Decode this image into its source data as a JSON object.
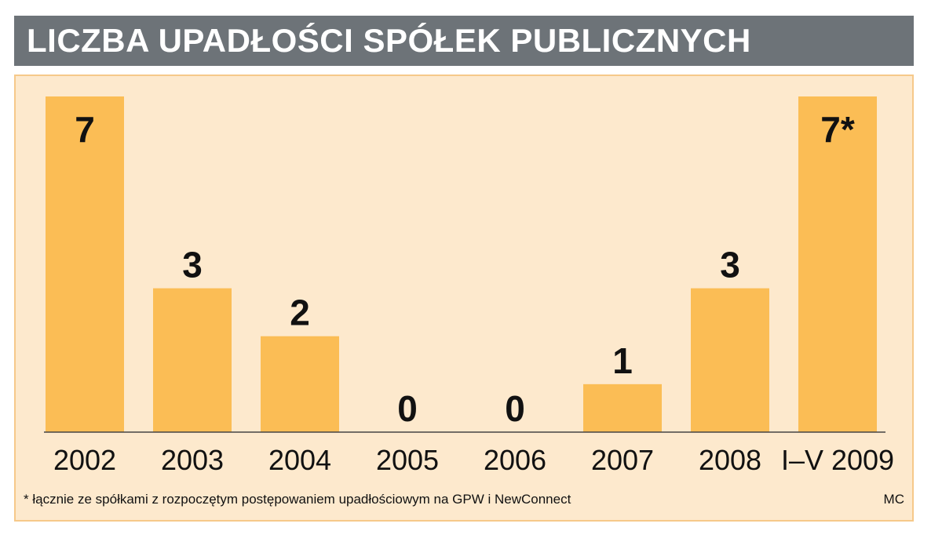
{
  "chart_data": {
    "type": "bar",
    "title": "LICZBA UPADŁOŚCI SPÓŁEK PUBLICZNYCH",
    "categories": [
      "2002",
      "2003",
      "2004",
      "2005",
      "2006",
      "2007",
      "2008",
      "I–V 2009"
    ],
    "values": [
      7,
      3,
      2,
      0,
      0,
      1,
      3,
      7
    ],
    "value_labels": [
      "7",
      "3",
      "2",
      "0",
      "0",
      "1",
      "3",
      "7*"
    ],
    "ylim": [
      0,
      7
    ],
    "xlabel": "",
    "ylabel": "",
    "grid": false,
    "legend": "none",
    "footnote": "* łącznie ze spółkami z rozpoczętym postępowaniem upadłościowym na GPW i NewConnect",
    "credit": "MC",
    "colors": {
      "bar": "#fbbd55",
      "panel": "#fde9cd",
      "panel_border": "#f6c98a",
      "title_bar": "#6d7378",
      "text": "#111111"
    }
  }
}
